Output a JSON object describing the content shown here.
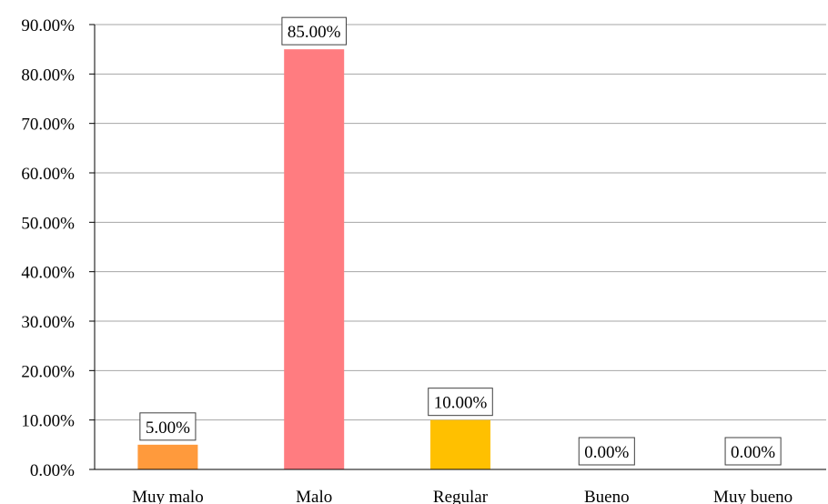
{
  "chart_data": {
    "type": "bar",
    "categories": [
      "Muy malo",
      "Malo",
      "Regular",
      "Bueno",
      "Muy bueno"
    ],
    "values": [
      5.0,
      85.0,
      10.0,
      0.0,
      0.0
    ],
    "data_labels": [
      "5.00%",
      "85.00%",
      "10.00%",
      "0.00%",
      "0.00%"
    ],
    "bar_colors": [
      "#ff9a3c",
      "#ff7c80",
      "#ffc000",
      "#ffc000",
      "#ffc000"
    ],
    "y_ticks": [
      0,
      10,
      20,
      30,
      40,
      50,
      60,
      70,
      80,
      90
    ],
    "y_tick_labels": [
      "0.00%",
      "10.00%",
      "20.00%",
      "30.00%",
      "40.00%",
      "50.00%",
      "60.00%",
      "70.00%",
      "80.00%",
      "90.00%"
    ],
    "ylim": [
      0,
      90
    ],
    "grid": true,
    "legend": "none",
    "title": "",
    "xlabel": "",
    "ylabel": ""
  }
}
